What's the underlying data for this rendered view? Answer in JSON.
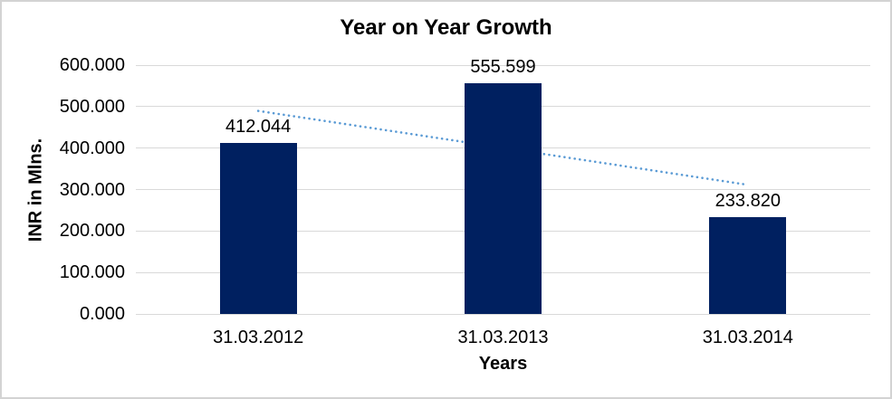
{
  "chart_data": {
    "type": "bar",
    "title": "Year on Year Growth",
    "xlabel": "Years",
    "ylabel": "INR in Mlns.",
    "categories": [
      "31.03.2012",
      "31.03.2013",
      "31.03.2014"
    ],
    "values": [
      412.044,
      555.599,
      233.82
    ],
    "value_labels": [
      "412.044",
      "555.599",
      "233.820"
    ],
    "ylim": [
      0,
      600
    ],
    "ytick_values": [
      0,
      100,
      200,
      300,
      400,
      500,
      600
    ],
    "ytick_labels": [
      "0.000",
      "100.000",
      "200.000",
      "300.000",
      "400.000",
      "500.000",
      "600.000"
    ],
    "grid": true,
    "legend": "none",
    "trendline": {
      "type": "linear",
      "style": "dotted",
      "start_category_index": 0,
      "end_category_index": 2,
      "start_value": 489.6,
      "end_value": 311.4
    },
    "colors": {
      "bar": "#002060",
      "trendline": "#5B9BD5",
      "gridline": "#D9D9D9",
      "text": "#000000",
      "border": "#D3D3D3",
      "background": "#FFFFFF"
    }
  }
}
